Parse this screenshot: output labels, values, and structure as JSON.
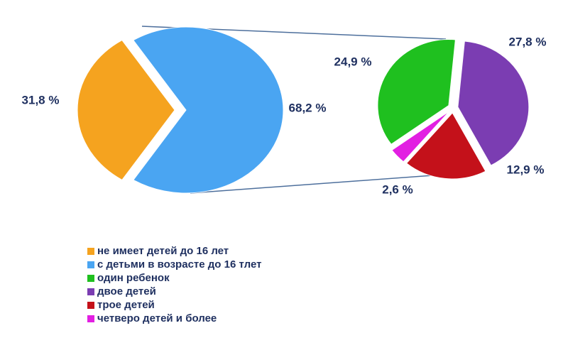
{
  "chart_data": [
    {
      "type": "pie",
      "categories": [
        "не имеет детей до 16 лет",
        "с детьми в возрасте до 16 тлет"
      ],
      "values": [
        31.8,
        68.2
      ],
      "value_labels": [
        "31,8 %",
        "68,2 %"
      ],
      "colors": [
        "#f5a31f",
        "#4aa5f2"
      ]
    },
    {
      "type": "pie",
      "categories": [
        "один ребенок",
        "двое детей",
        "трое детей",
        "четверо детей и более"
      ],
      "values": [
        24.9,
        27.8,
        12.9,
        2.6
      ],
      "value_labels": [
        "24,9 %",
        "27,8 %",
        "12,9 %",
        "2,6 %"
      ],
      "colors": [
        "#1fc01f",
        "#7b3db2",
        "#c4111a",
        "#e21fe2"
      ]
    }
  ]
}
